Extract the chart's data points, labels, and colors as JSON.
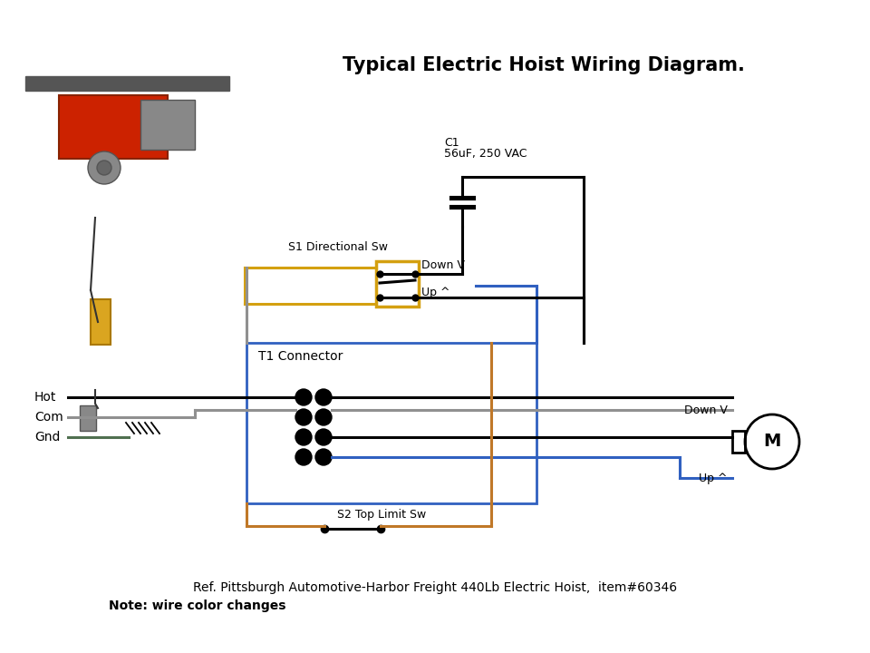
{
  "title": "Typical Electric Hoist Wiring Diagram.",
  "title_fontsize": 15,
  "ref_text": "Ref. Pittsburgh Automotive-Harbor Freight 440Lb Electric Hoist,  item#60346",
  "note_text": "Note: wire color changes",
  "bg_color": "#ffffff",
  "labels": {
    "hot": "Hot",
    "com": "Com",
    "gnd": "Gnd",
    "s1": "S1 Directional Sw",
    "down_v_switch": "Down V",
    "up_switch": "Up ^",
    "t1": "T1 Connector",
    "s2": "S2 Top Limit Sw",
    "down_v_motor": "Down V",
    "up_motor": "Up ^",
    "c1_label": "C1",
    "c1_value": "56uF, 250 VAC",
    "motor": "M"
  },
  "colors": {
    "black": "#000000",
    "gray": "#909090",
    "blue": "#3060C0",
    "orange": "#C07828",
    "yellow": "#D4A010",
    "green": "#507050",
    "white": "#ffffff"
  }
}
